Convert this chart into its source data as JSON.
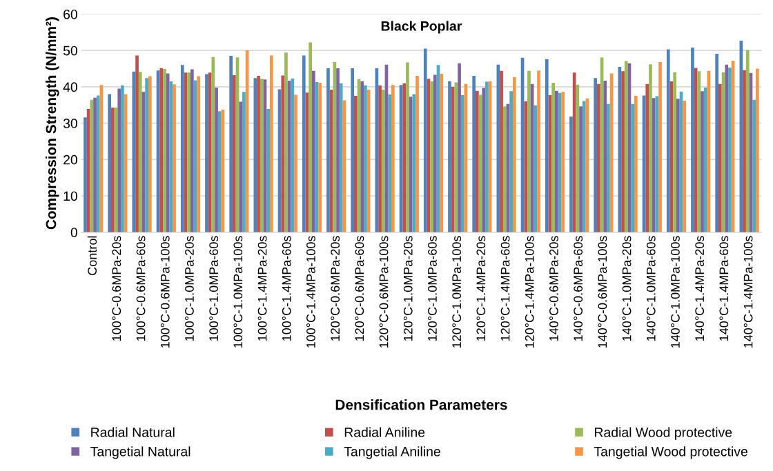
{
  "chart_data": {
    "type": "bar",
    "title": "Black Poplar",
    "xlabel": "Densification Parameters",
    "ylabel": "Compression Strength (N/mm²)",
    "categories": [
      "Control",
      "100°C-0.6MPa-20s",
      "100°C-0.6MPa-60s",
      "100°C-0.6MPa-100s",
      "100°C-1.0MPa-20s",
      "100°C-1.0MPa-60s",
      "100°C-1.0MPa-100s",
      "100°C-1.4MPa-20s",
      "100°C-1.4MPa-60s",
      "100°C-1.4MPa-100s",
      "120°C-0.6MPa-20s",
      "120°C-0.6MPa-60s",
      "120°C-0.6MPa-100s",
      "120°C-1.0MPa-20s",
      "120°C-1.0MPa-60s",
      "120°C-1.0MPa-100s",
      "120°C-1.4MPa-20s",
      "120°C-1.4MPa-60s",
      "120°C-1.4MPa-100s",
      "140°C-0.6MPa-20s",
      "140°C-0.6MPa-60s",
      "140°C-0.6MPa-100s",
      "140°C-1.0MPa-20s",
      "140°C-1.0MPa-60s",
      "140°C-1.0MPa-100s",
      "140°C-1.4MPa-20s",
      "140°C-1.4MPa-60s",
      "140°C-1.4MPa-100s"
    ],
    "series": [
      {
        "name": "Radial Natural",
        "color": "#4f81bd",
        "values": [
          31.6,
          38.0,
          44.2,
          44.5,
          46.0,
          43.5,
          48.5,
          42.4,
          39.3,
          48.6,
          45.1,
          45.1,
          45.1,
          40.5,
          50.5,
          41.5,
          43.0,
          46.1,
          48.0,
          47.6,
          31.8,
          42.4,
          45.5,
          37.6,
          50.3,
          50.8,
          49.1,
          52.7
        ]
      },
      {
        "name": "Radial Aniline",
        "color": "#c0504d",
        "values": [
          33.9,
          34.3,
          48.6,
          45.1,
          43.9,
          43.9,
          43.2,
          43.0,
          43.1,
          38.4,
          39.2,
          37.5,
          40.4,
          41.0,
          42.2,
          40.0,
          38.9,
          44.4,
          36.0,
          37.7,
          43.9,
          40.8,
          44.3,
          40.8,
          41.5,
          45.2,
          40.8,
          44.6
        ]
      },
      {
        "name": "Radial Wood protective",
        "color": "#9bbb59",
        "values": [
          36.4,
          34.3,
          44.1,
          44.9,
          43.9,
          48.2,
          48.1,
          42.2,
          49.4,
          52.2,
          46.8,
          42.1,
          39.2,
          46.7,
          41.5,
          41.2,
          37.8,
          34.6,
          44.4,
          41.1,
          40.6,
          48.1,
          47.1,
          46.2,
          44.0,
          44.3,
          44.0,
          50.2
        ]
      },
      {
        "name": "Tangetial Natural",
        "color": "#8064a2",
        "values": [
          37.0,
          39.5,
          38.6,
          43.7,
          44.8,
          39.8,
          35.9,
          42.0,
          41.7,
          44.4,
          45.1,
          41.5,
          46.1,
          37.3,
          43.3,
          46.5,
          39.7,
          35.3,
          40.8,
          38.9,
          34.6,
          41.7,
          46.5,
          36.9,
          36.7,
          38.8,
          46.1,
          43.8
        ]
      },
      {
        "name": "Tangetial Aniline",
        "color": "#4bacc6",
        "values": [
          37.6,
          40.4,
          42.4,
          41.5,
          41.8,
          33.3,
          38.6,
          33.9,
          42.3,
          41.3,
          41.0,
          40.4,
          37.9,
          38.0,
          46.0,
          37.7,
          41.4,
          38.8,
          34.9,
          38.3,
          36.1,
          35.3,
          35.3,
          37.4,
          38.7,
          39.8,
          45.3,
          36.4
        ]
      },
      {
        "name": "Tangetial Wood protective",
        "color": "#f79646",
        "values": [
          40.5,
          38.0,
          42.9,
          40.7,
          42.9,
          33.7,
          50.1,
          48.6,
          37.8,
          41.1,
          36.3,
          39.2,
          40.5,
          43.0,
          43.6,
          40.8,
          41.5,
          42.7,
          44.5,
          38.6,
          36.8,
          43.7,
          37.5,
          46.8,
          36.2,
          44.4,
          47.2,
          45.0
        ]
      }
    ],
    "ylim": [
      0,
      60
    ],
    "yticks": [
      0,
      10,
      20,
      30,
      40,
      50,
      60
    ],
    "grid": "y",
    "legend": "bottom"
  }
}
